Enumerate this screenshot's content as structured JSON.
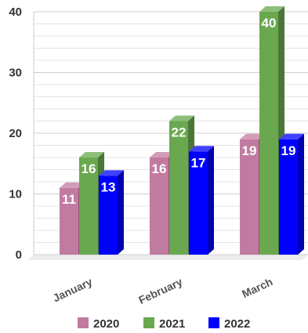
{
  "chart_data": {
    "type": "bar",
    "title": "",
    "xlabel": "",
    "ylabel": "",
    "categories": [
      "January",
      "February",
      "March"
    ],
    "series": [
      {
        "name": "2020",
        "values": [
          11,
          16,
          19
        ],
        "color": "#c27ba0"
      },
      {
        "name": "2021",
        "values": [
          16,
          22,
          40
        ],
        "color": "#6aa84f"
      },
      {
        "name": "2022",
        "values": [
          13,
          17,
          19
        ],
        "color": "#0000ff"
      }
    ],
    "ylim": [
      0,
      40
    ],
    "yticks": [
      0,
      10,
      20,
      30,
      40
    ],
    "grid": true,
    "style": "3d",
    "legend_position": "bottom"
  }
}
